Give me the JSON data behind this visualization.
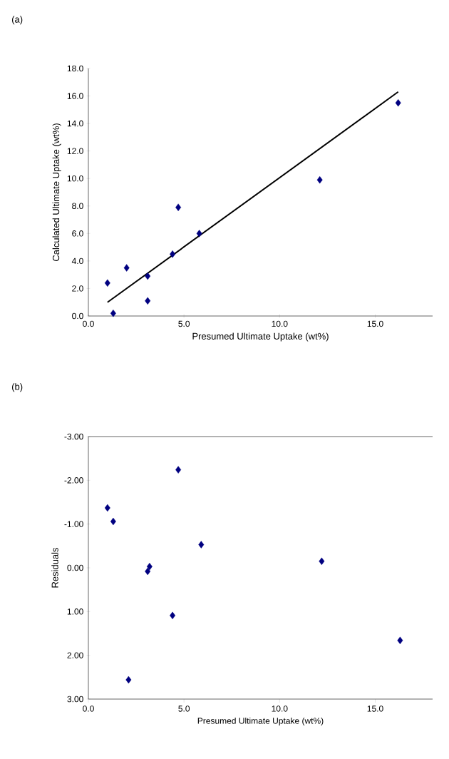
{
  "chart_data": [
    {
      "type": "scatter",
      "annotations": [
        "(a)"
      ],
      "xlabel": "Presumed Ultimate Uptake (wt%)",
      "ylabel": "Calculated Ultimate Uptake (wt%)",
      "marker": "diamond",
      "xlim": [
        0,
        18
      ],
      "ylim": [
        0,
        18
      ],
      "xticks": [
        {
          "value": 0,
          "label": "0.0"
        },
        {
          "value": 5,
          "label": "5.0"
        },
        {
          "value": 10,
          "label": "10.0"
        },
        {
          "value": 15,
          "label": "15.0"
        }
      ],
      "yticks": [
        {
          "value": 0,
          "label": "0.0"
        },
        {
          "value": 2,
          "label": "2.0"
        },
        {
          "value": 4,
          "label": "4.0"
        },
        {
          "value": 6,
          "label": "6.0"
        },
        {
          "value": 8,
          "label": "8.0"
        },
        {
          "value": 10,
          "label": "10.0"
        },
        {
          "value": 12,
          "label": "12.0"
        },
        {
          "value": 14,
          "label": "14.0"
        },
        {
          "value": 16,
          "label": "16.0"
        },
        {
          "value": 18,
          "label": "18.0"
        }
      ],
      "series": [
        {
          "color": "#000080",
          "x": [
            1.0,
            1.3,
            2.0,
            3.1,
            3.1,
            4.4,
            4.7,
            5.8,
            12.1,
            16.2
          ],
          "values": [
            2.4,
            0.2,
            3.5,
            2.9,
            1.1,
            4.5,
            7.9,
            6.0,
            9.9,
            15.5
          ]
        },
        {
          "type": "line",
          "color": "#000000",
          "marker": "none",
          "x": [
            1.0,
            16.2
          ],
          "values": [
            1.0,
            16.3
          ]
        }
      ]
    },
    {
      "type": "scatter",
      "annotations": [
        "(b)"
      ],
      "xlabel": "Presumed Ultimate Uptake (wt%)",
      "ylabel": "Residuals",
      "marker": "diamond",
      "xlim": [
        0,
        18
      ],
      "ylim": [
        3,
        -3
      ],
      "xticks": [
        {
          "value": 0,
          "label": "0.0"
        },
        {
          "value": 5,
          "label": "5.0"
        },
        {
          "value": 10,
          "label": "10.0"
        },
        {
          "value": 15,
          "label": "15.0"
        }
      ],
      "yticks": [
        {
          "value": -3,
          "label": "-3.00"
        },
        {
          "value": -2,
          "label": "-2.00"
        },
        {
          "value": -1,
          "label": "-1.00"
        },
        {
          "value": 0,
          "label": "0.00"
        },
        {
          "value": 1,
          "label": "1.00"
        },
        {
          "value": 2,
          "label": "2.00"
        },
        {
          "value": 3,
          "label": "3.00"
        }
      ],
      "series": [
        {
          "color": "#000080",
          "x": [
            1.0,
            1.3,
            2.1,
            3.1,
            3.2,
            4.4,
            4.7,
            5.9,
            12.2,
            16.3
          ],
          "values": [
            -1.37,
            -1.06,
            2.56,
            0.08,
            -0.03,
            1.09,
            -2.24,
            -0.53,
            -0.15,
            1.66
          ]
        }
      ]
    }
  ]
}
